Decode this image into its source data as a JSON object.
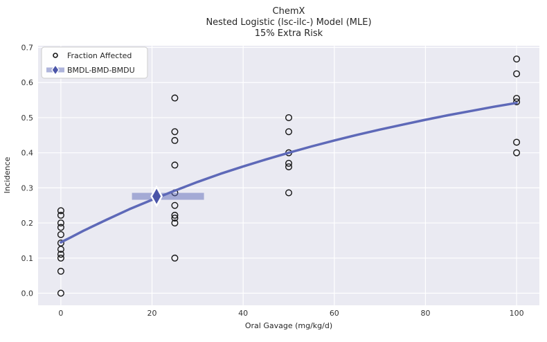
{
  "title": {
    "line1": "ChemX",
    "line2": "Nested Logistic (lsc-ilc-) Model (MLE)",
    "line3": "15% Extra Risk"
  },
  "legend": {
    "items": [
      {
        "label": "Fraction Affected",
        "marker": "open-circle-icon"
      },
      {
        "label": "BMDL-BMD-BMDU",
        "marker": "bmd-diamond-band-icon"
      }
    ]
  },
  "colors": {
    "figure_bg": "#ffffff",
    "plot_bg": "#eaeaf2",
    "grid": "#ffffff",
    "curve": "#5e69b8",
    "band": "#5e69b8",
    "band_opacity": 0.5,
    "diamond": "#4b55a8",
    "marker_edge": "#141414",
    "text": "#262626",
    "tick_text": "#333333",
    "legend_border": "#cccccc"
  },
  "chart_data": {
    "type": "scatter",
    "title": "ChemX | Nested Logistic (lsc-ilc-) Model (MLE) | 15% Extra Risk",
    "xlabel": "Oral Gavage (mg/kg/d)",
    "ylabel": "Incidence",
    "xlim": [
      -5,
      105
    ],
    "ylim": [
      -0.0345,
      0.705
    ],
    "xticks": [
      0,
      20,
      40,
      60,
      80,
      100
    ],
    "yticks": [
      0.0,
      0.1,
      0.2,
      0.3,
      0.4,
      0.5,
      0.6,
      0.7
    ],
    "grid": true,
    "legend_position": "upper left",
    "series": [
      {
        "name": "Fraction Affected",
        "type": "scatter",
        "marker": "open-circle",
        "points": [
          [
            0,
            0.0
          ],
          [
            0,
            0.0625
          ],
          [
            0,
            0.1
          ],
          [
            0,
            0.111
          ],
          [
            0,
            0.125
          ],
          [
            0,
            0.143
          ],
          [
            0,
            0.167
          ],
          [
            0,
            0.1875
          ],
          [
            0,
            0.2
          ],
          [
            0,
            0.222
          ],
          [
            0,
            0.235
          ],
          [
            25,
            0.1
          ],
          [
            25,
            0.2
          ],
          [
            25,
            0.214
          ],
          [
            25,
            0.222
          ],
          [
            25,
            0.25
          ],
          [
            25,
            0.286
          ],
          [
            25,
            0.365
          ],
          [
            25,
            0.435
          ],
          [
            25,
            0.46
          ],
          [
            25,
            0.556
          ],
          [
            50,
            0.286
          ],
          [
            50,
            0.36
          ],
          [
            50,
            0.37
          ],
          [
            50,
            0.4
          ],
          [
            50,
            0.46
          ],
          [
            50,
            0.5
          ],
          [
            100,
            0.4
          ],
          [
            100,
            0.43
          ],
          [
            100,
            0.545
          ],
          [
            100,
            0.555
          ],
          [
            100,
            0.625
          ],
          [
            100,
            0.667
          ]
        ]
      },
      {
        "name": "Nested Logistic Model (MLE) curve",
        "type": "line",
        "points": [
          [
            0,
            0.145
          ],
          [
            2,
            0.158
          ],
          [
            5,
            0.178
          ],
          [
            10,
            0.209
          ],
          [
            15,
            0.239
          ],
          [
            20,
            0.266
          ],
          [
            25,
            0.292
          ],
          [
            30,
            0.317
          ],
          [
            35,
            0.34
          ],
          [
            40,
            0.361
          ],
          [
            45,
            0.381
          ],
          [
            50,
            0.4
          ],
          [
            55,
            0.418
          ],
          [
            60,
            0.435
          ],
          [
            65,
            0.451
          ],
          [
            70,
            0.466
          ],
          [
            75,
            0.48
          ],
          [
            80,
            0.494
          ],
          [
            85,
            0.507
          ],
          [
            90,
            0.519
          ],
          [
            95,
            0.531
          ],
          [
            100,
            0.542
          ]
        ]
      },
      {
        "name": "BMDL-BMD-BMDU",
        "type": "interval",
        "bmdl": 15.6,
        "bmd": 21.0,
        "bmdu": 31.4,
        "response": 0.276
      }
    ]
  }
}
